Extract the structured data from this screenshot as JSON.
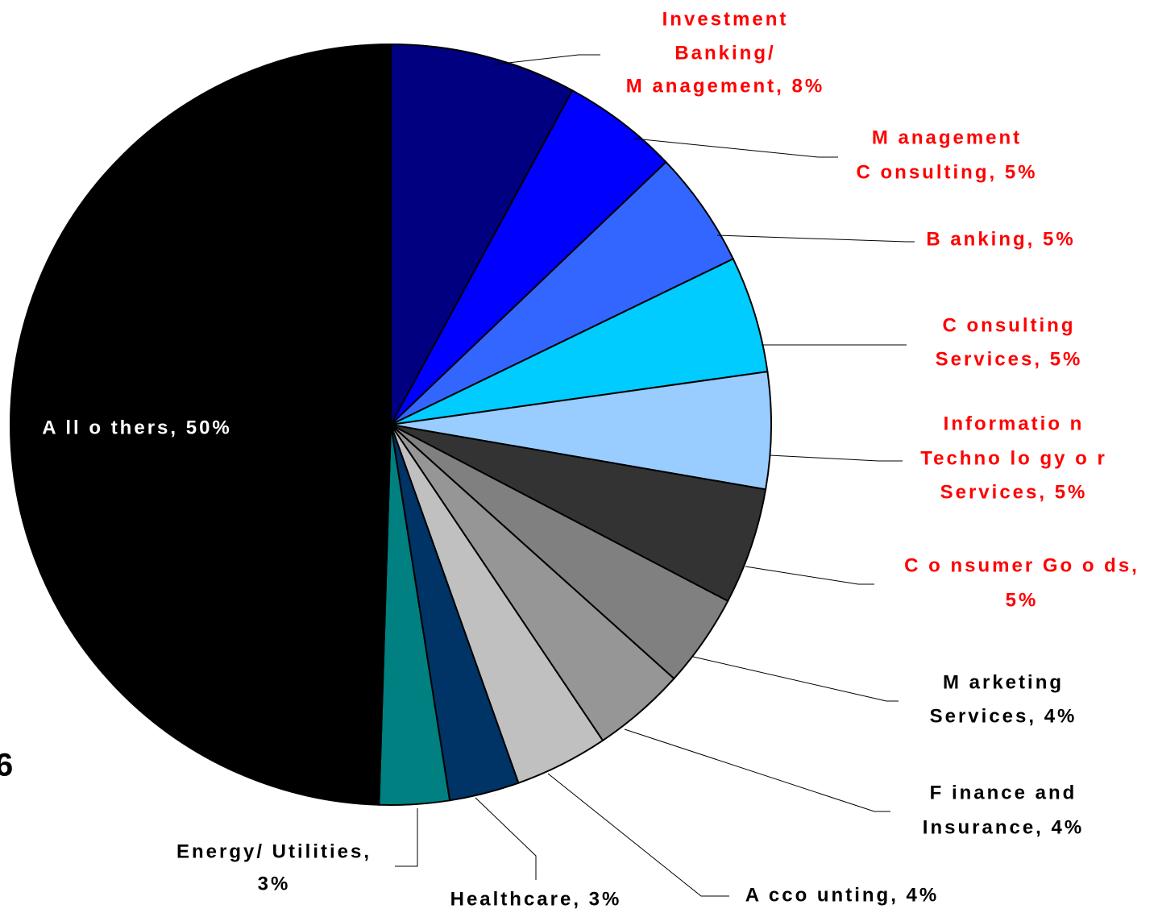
{
  "chart_data": {
    "type": "pie",
    "labels": [
      [
        "Investment",
        "Banking/",
        "M anagement, 8%"
      ],
      [
        "M anagement",
        "C onsulting, 5%"
      ],
      [
        "B anking, 5%"
      ],
      [
        "C onsulting",
        "Services, 5%"
      ],
      [
        "Informatio n",
        "Techno lo gy o r",
        "Services, 5%"
      ],
      [
        "C o nsumer Go o ds,",
        "5%"
      ],
      [
        "M arketing",
        "Services, 4%"
      ],
      [
        "F inance and",
        "Insurance, 4%"
      ],
      [
        "A cco unting, 4%"
      ],
      [
        "Healthcare, 3%"
      ],
      [
        "Energy/ Utilities,",
        "3%"
      ],
      [
        "A ll o thers, 50%"
      ]
    ],
    "values": [
      8,
      5,
      5,
      5,
      5,
      5,
      4,
      4,
      4,
      3,
      3,
      50
    ],
    "colors": [
      "#000080",
      "#0000ff",
      "#3366ff",
      "#00ccff",
      "#99ccff",
      "#333333",
      "#808080",
      "#969696",
      "#c0c0c0",
      "#003366",
      "#008080",
      "#000000"
    ],
    "label_colors": [
      "#ff0000",
      "#ff0000",
      "#ff0000",
      "#ff0000",
      "#ff0000",
      "#ff0000",
      "#000000",
      "#000000",
      "#000000",
      "#000000",
      "#000000",
      "#ffffff"
    ],
    "side_text": "6"
  }
}
